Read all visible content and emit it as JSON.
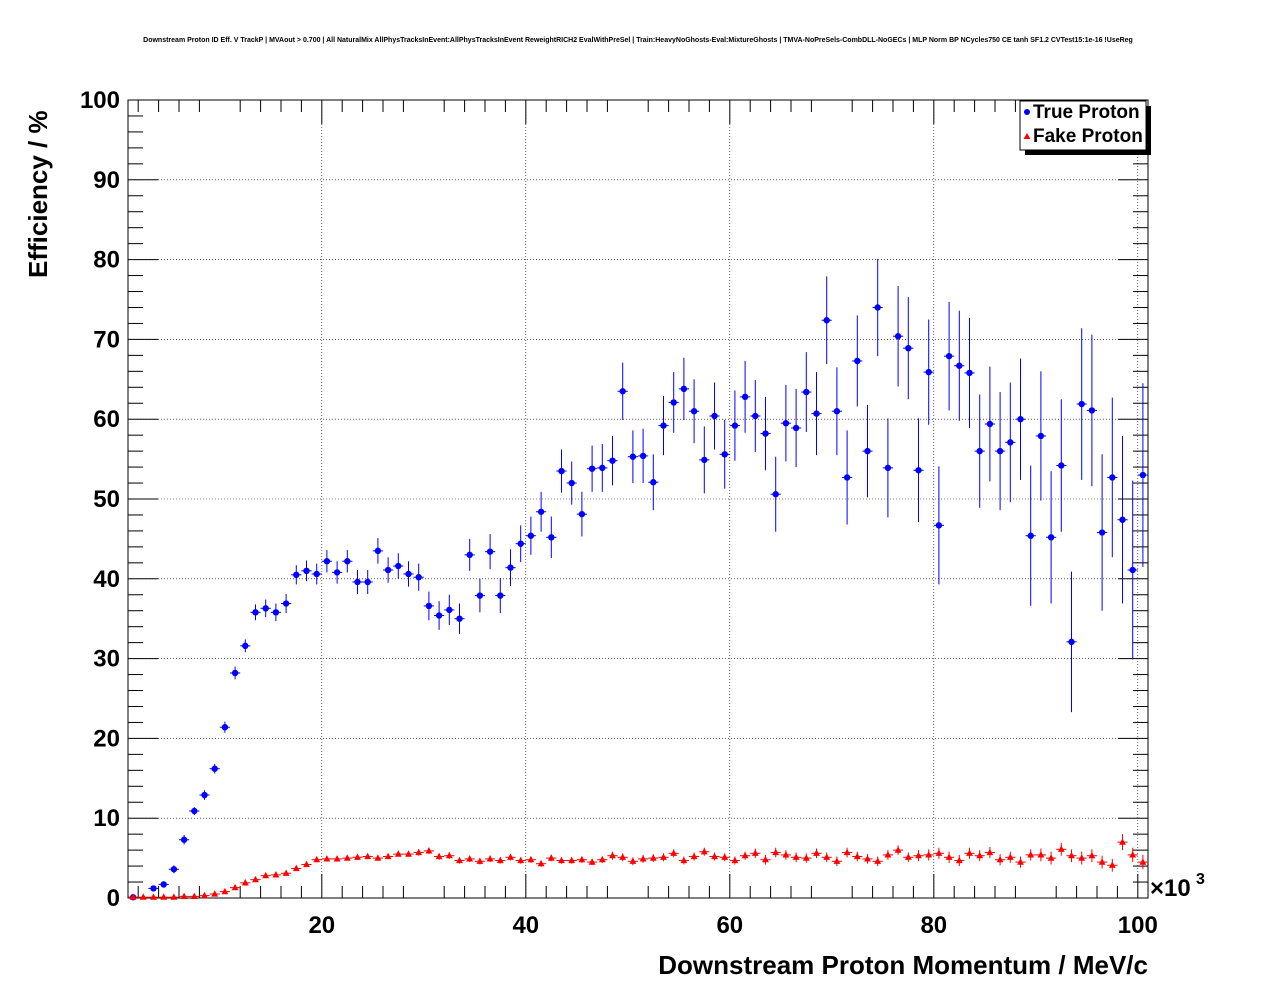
{
  "chart_data": {
    "type": "scatter",
    "title": "Downstream Proton ID Eff. V TrackP | MVAout > 0.700 | All NaturalMix AllPhysTracksInEvent:AllPhysTracksInEvent ReweightRICH2 EvalWithPreSel | Train:HeavyNoGhosts-Eval:MixtureGhosts | TMVA-NoPreSels-CombDLL-NoGECs | MLP Norm BP NCycles750 CE tanh SF1.2 CVTest15:1e-16 !UseReg",
    "xlabel": "Downstream Proton Momentum / MeV/c",
    "ylabel": "Efficiency / %",
    "x_multiplier_label": "×10",
    "x_multiplier_exp": "3",
    "xlim": [
      1,
      101
    ],
    "ylim": [
      0,
      100
    ],
    "x_ticks": [
      "20",
      "40",
      "60",
      "80",
      "100"
    ],
    "y_ticks": [
      "0",
      "10",
      "20",
      "30",
      "40",
      "50",
      "60",
      "70",
      "80",
      "90",
      "100"
    ],
    "grid": true,
    "legend_position": "top-right",
    "series": [
      {
        "name": "True Proton",
        "color": "#0000ff",
        "marker": "circle",
        "x": [
          1.5,
          3.5,
          4.5,
          5.5,
          6.5,
          7.5,
          8.5,
          9.5,
          10.5,
          11.5,
          12.5,
          13.5,
          14.5,
          15.5,
          16.5,
          17.5,
          18.5,
          19.5,
          20.5,
          21.5,
          22.5,
          23.5,
          24.5,
          25.5,
          26.5,
          27.5,
          28.5,
          29.5,
          30.5,
          31.5,
          32.5,
          33.5,
          34.5,
          35.5,
          36.5,
          37.5,
          38.5,
          39.5,
          40.5,
          41.5,
          42.5,
          43.5,
          44.5,
          45.5,
          46.5,
          47.5,
          48.5,
          49.5,
          50.5,
          51.5,
          52.5,
          53.5,
          54.5,
          55.5,
          56.5,
          57.5,
          58.5,
          59.5,
          60.5,
          61.5,
          62.5,
          63.5,
          64.5,
          65.5,
          66.5,
          67.5,
          68.5,
          69.5,
          70.5,
          71.5,
          72.5,
          73.5,
          74.5,
          75.5,
          76.5,
          77.5,
          78.5,
          79.5,
          80.5,
          81.5,
          82.5,
          83.5,
          84.5,
          85.5,
          86.5,
          87.5,
          88.5,
          89.5,
          90.5,
          91.5,
          92.5,
          93.5,
          94.5,
          95.5,
          96.5,
          97.5,
          98.5,
          99.5,
          100.5
        ],
        "y": [
          0.1,
          1.2,
          1.7,
          3.6,
          7.3,
          10.9,
          12.9,
          16.2,
          21.4,
          28.2,
          31.6,
          35.8,
          36.3,
          35.8,
          36.9,
          40.5,
          41,
          40.6,
          42.2,
          40.8,
          42.2,
          39.6,
          39.6,
          43.5,
          41.1,
          41.6,
          40.6,
          40.2,
          36.6,
          35.4,
          36.1,
          35,
          43,
          37.9,
          43.4,
          37.9,
          41.4,
          44.4,
          45.4,
          48.4,
          45.2,
          53.5,
          52,
          48.1,
          53.8,
          53.9,
          54.8,
          63.5,
          55.3,
          55.4,
          52.1,
          59.2,
          62.1,
          63.8,
          61,
          54.9,
          60.4,
          55.6,
          59.2,
          62.8,
          60.4,
          58.2,
          50.6,
          59.5,
          58.9,
          63.4,
          60.7,
          72.4,
          61,
          52.7,
          67.3,
          56,
          74,
          53.9,
          70.4,
          68.9,
          53.6,
          65.9,
          46.7,
          67.9,
          66.7,
          65.8,
          56,
          59.4,
          56,
          57.1,
          60,
          45.4,
          57.9,
          45.2,
          54.2,
          32.1,
          61.9,
          61.1,
          45.8,
          52.7,
          47.4,
          41.1,
          53
        ],
        "err": [
          0.2,
          0.3,
          0.4,
          0.5,
          0.6,
          0.5,
          0.6,
          0.6,
          0.7,
          0.8,
          0.8,
          1,
          1.1,
          1.1,
          1.2,
          1.2,
          1.3,
          1.3,
          1.4,
          1.4,
          1.4,
          1.5,
          1.5,
          1.6,
          1.6,
          1.6,
          1.6,
          1.7,
          1.8,
          1.8,
          1.9,
          1.9,
          2,
          2.1,
          2.2,
          2.2,
          2.3,
          2.3,
          2.4,
          2.5,
          2.6,
          2.7,
          2.7,
          2.8,
          2.9,
          3,
          3.1,
          3.6,
          3.3,
          3.4,
          3.5,
          3.7,
          3.8,
          3.9,
          4,
          4.2,
          4.2,
          4.3,
          4.4,
          4.5,
          4.5,
          4.6,
          4.7,
          4.8,
          4.9,
          5,
          5.2,
          5.5,
          5.5,
          5.9,
          5.7,
          5.8,
          6.1,
          6.2,
          6.3,
          6.4,
          6.5,
          6.6,
          7.4,
          6.8,
          6.9,
          6.9,
          7.1,
          7.2,
          7.4,
          7.5,
          7.6,
          8.8,
          8.1,
          8.3,
          8.3,
          8.8,
          9.5,
          9.5,
          9.8,
          10,
          10.5,
          11.2,
          11.5
        ]
      },
      {
        "name": "Fake Proton",
        "color": "#ff0000",
        "marker": "triangle",
        "x": [
          1.5,
          2.5,
          3.5,
          4.5,
          5.5,
          6.5,
          7.5,
          8.5,
          9.5,
          10.5,
          11.5,
          12.5,
          13.5,
          14.5,
          15.5,
          16.5,
          17.5,
          18.5,
          19.5,
          20.5,
          21.5,
          22.5,
          23.5,
          24.5,
          25.5,
          26.5,
          27.5,
          28.5,
          29.5,
          30.5,
          31.5,
          32.5,
          33.5,
          34.5,
          35.5,
          36.5,
          37.5,
          38.5,
          39.5,
          40.5,
          41.5,
          42.5,
          43.5,
          44.5,
          45.5,
          46.5,
          47.5,
          48.5,
          49.5,
          50.5,
          51.5,
          52.5,
          53.5,
          54.5,
          55.5,
          56.5,
          57.5,
          58.5,
          59.5,
          60.5,
          61.5,
          62.5,
          63.5,
          64.5,
          65.5,
          66.5,
          67.5,
          68.5,
          69.5,
          70.5,
          71.5,
          72.5,
          73.5,
          74.5,
          75.5,
          76.5,
          77.5,
          78.5,
          79.5,
          80.5,
          81.5,
          82.5,
          83.5,
          84.5,
          85.5,
          86.5,
          87.5,
          88.5,
          89.5,
          90.5,
          91.5,
          92.5,
          93.5,
          94.5,
          95.5,
          96.5,
          97.5,
          98.5,
          99.5,
          100.5
        ],
        "y": [
          0.1,
          0.1,
          0.1,
          0.1,
          0.1,
          0.2,
          0.2,
          0.3,
          0.5,
          0.8,
          1.3,
          1.9,
          2.3,
          2.8,
          2.9,
          3.1,
          3.7,
          4.2,
          4.8,
          4.9,
          4.9,
          5,
          5.1,
          5.2,
          5,
          5.2,
          5.5,
          5.5,
          5.7,
          5.9,
          5.2,
          5.3,
          4.7,
          4.9,
          4.6,
          4.9,
          4.7,
          5.1,
          4.7,
          4.8,
          4.3,
          5,
          4.7,
          4.7,
          4.8,
          4.5,
          4.8,
          5.3,
          5.1,
          4.6,
          4.9,
          5,
          5.1,
          5.6,
          4.7,
          5.2,
          5.8,
          5.2,
          5.1,
          4.7,
          5.3,
          5.6,
          4.8,
          5.7,
          5.4,
          5.1,
          5,
          5.6,
          5.1,
          4.6,
          5.7,
          5.2,
          4.9,
          4.6,
          5.4,
          6,
          5.1,
          5.3,
          5.4,
          5.6,
          5.1,
          4.7,
          5.6,
          5.3,
          5.7,
          4.8,
          5.1,
          4.5,
          5.4,
          5.4,
          5,
          6.1,
          5.3,
          5,
          5.3,
          4.5,
          4.1,
          7,
          5.4,
          4.5
        ],
        "err": [
          0.05,
          0.05,
          0.05,
          0.05,
          0.05,
          0.05,
          0.1,
          0.1,
          0.1,
          0.1,
          0.2,
          0.2,
          0.2,
          0.2,
          0.2,
          0.2,
          0.3,
          0.3,
          0.3,
          0.3,
          0.3,
          0.3,
          0.3,
          0.3,
          0.3,
          0.3,
          0.3,
          0.3,
          0.4,
          0.4,
          0.4,
          0.4,
          0.4,
          0.4,
          0.4,
          0.4,
          0.4,
          0.4,
          0.4,
          0.4,
          0.4,
          0.4,
          0.4,
          0.4,
          0.4,
          0.4,
          0.4,
          0.5,
          0.5,
          0.5,
          0.5,
          0.5,
          0.5,
          0.5,
          0.5,
          0.5,
          0.5,
          0.5,
          0.5,
          0.5,
          0.5,
          0.6,
          0.6,
          0.6,
          0.6,
          0.6,
          0.6,
          0.6,
          0.6,
          0.6,
          0.6,
          0.6,
          0.6,
          0.6,
          0.6,
          0.6,
          0.6,
          0.7,
          0.7,
          0.7,
          0.7,
          0.7,
          0.7,
          0.7,
          0.7,
          0.7,
          0.7,
          0.7,
          0.7,
          0.8,
          0.8,
          0.8,
          0.8,
          0.8,
          0.8,
          0.8,
          0.8,
          1,
          0.9,
          0.9
        ]
      }
    ]
  }
}
